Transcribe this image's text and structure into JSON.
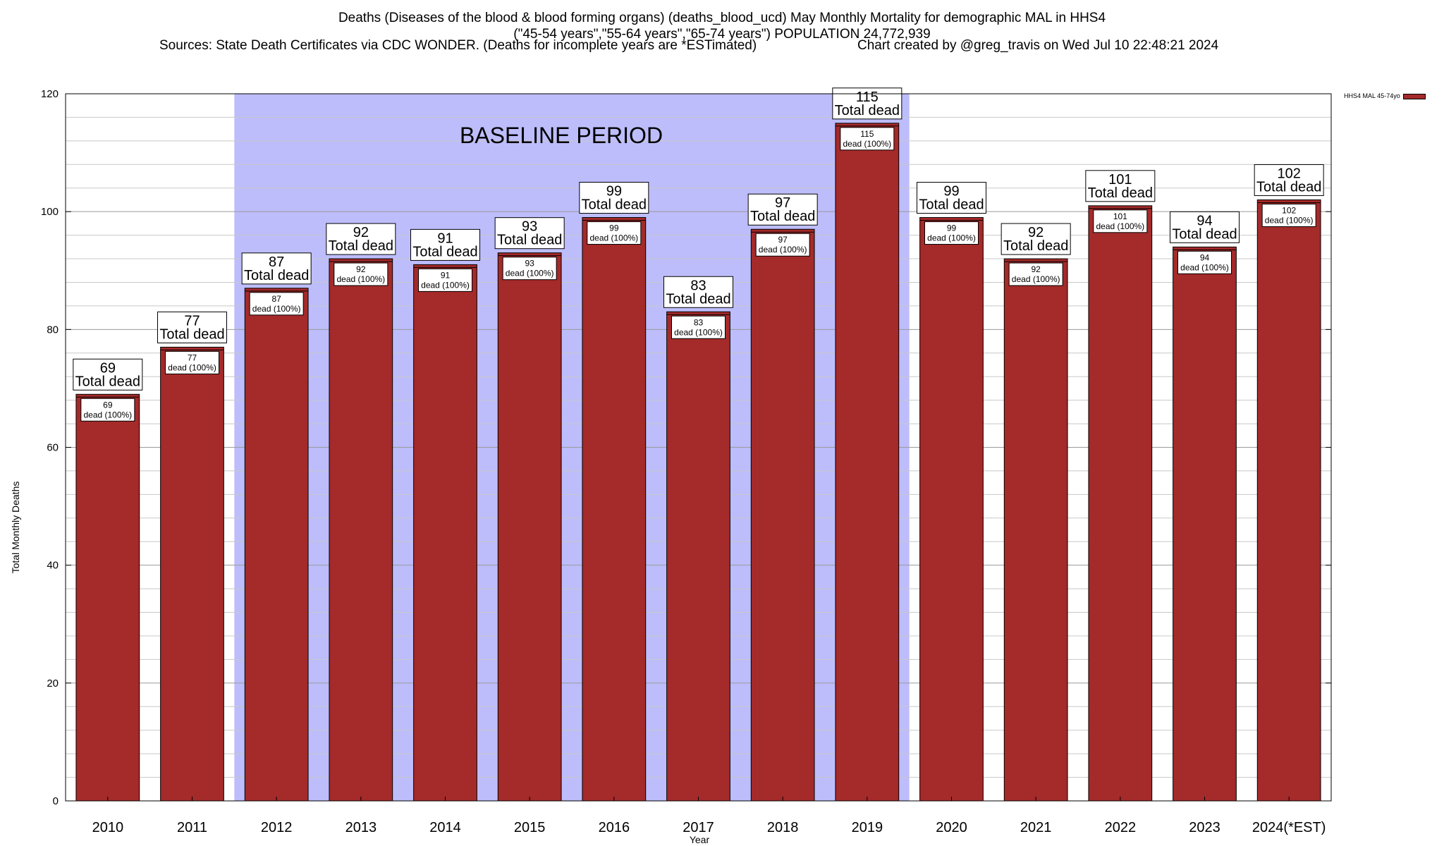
{
  "chart_data": {
    "type": "bar",
    "title": [
      "Deaths (Diseases of the blood & blood forming organs) (deaths_blood_ucd) May Monthly Mortality for demographic MAL in HHS4",
      "(\"45-54 years\",\"55-64 years\",\"65-74 years\") POPULATION 24,772,939"
    ],
    "sources_left": "Sources: State Death Certificates via CDC WONDER. (Deaths for incomplete years are *ESTimated)",
    "sources_right": "Chart created by @greg_travis on Wed Jul 10 22:48:21 2024",
    "xlabel": "Year",
    "ylabel": "Total Monthly Deaths",
    "ylim": [
      0,
      120
    ],
    "yticks": [
      0,
      20,
      40,
      60,
      80,
      100,
      120
    ],
    "categories": [
      "2010",
      "2011",
      "2012",
      "2013",
      "2014",
      "2015",
      "2016",
      "2017",
      "2018",
      "2019",
      "2020",
      "2021",
      "2022",
      "2023",
      "2024(*EST)"
    ],
    "series": [
      {
        "name": "HHS4 MAL 45-74yo",
        "values": [
          69,
          77,
          87,
          92,
          91,
          93,
          99,
          83,
          97,
          115,
          99,
          92,
          101,
          94,
          102
        ]
      }
    ],
    "total_label": "Total dead",
    "inner_label": "dead (100%)",
    "baseline": {
      "label": "BASELINE PERIOD",
      "from": "2012",
      "to": "2019"
    },
    "legend_position": "top-right",
    "colors": {
      "bar": "#a52a2a",
      "baseline": "#bdbdfc"
    }
  }
}
